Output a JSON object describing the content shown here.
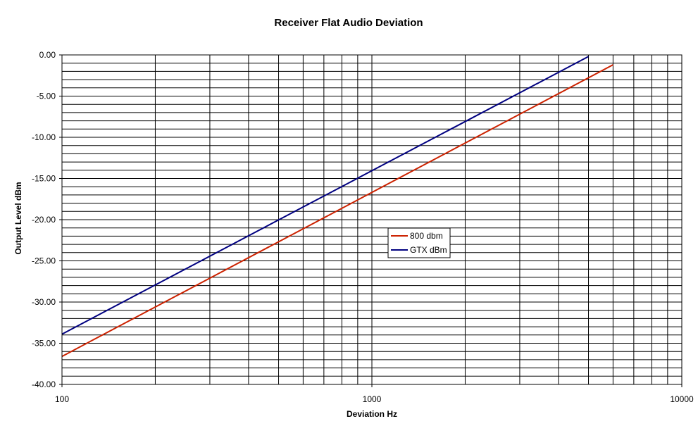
{
  "chart_data": {
    "type": "line",
    "title": "Receiver Flat Audio Deviation",
    "xlabel": "Deviation Hz",
    "ylabel": "Output Level dBm",
    "x_scale": "log",
    "xlim": [
      100,
      10000
    ],
    "ylim": [
      -40,
      0
    ],
    "x_ticks": [
      100,
      1000,
      10000
    ],
    "x_tick_labels": [
      "100",
      "1000",
      "10000"
    ],
    "y_ticks": [
      0,
      -5,
      -10,
      -15,
      -20,
      -25,
      -30,
      -35,
      -40
    ],
    "y_tick_labels": [
      "0.00",
      "-5.00",
      "-10.00",
      "-15.00",
      "-20.00",
      "-25.00",
      "-30.00",
      "-35.00",
      "-40.00"
    ],
    "grid": true,
    "legend_position": "center-right",
    "series": [
      {
        "name": "800 dbm",
        "color": "#cc2200",
        "x": [
          100,
          6000
        ],
        "y": [
          -36.6,
          -1.2
        ]
      },
      {
        "name": "GTX dBm",
        "color": "#000080",
        "x": [
          100,
          5000
        ],
        "y": [
          -33.9,
          -0.2
        ]
      }
    ]
  }
}
